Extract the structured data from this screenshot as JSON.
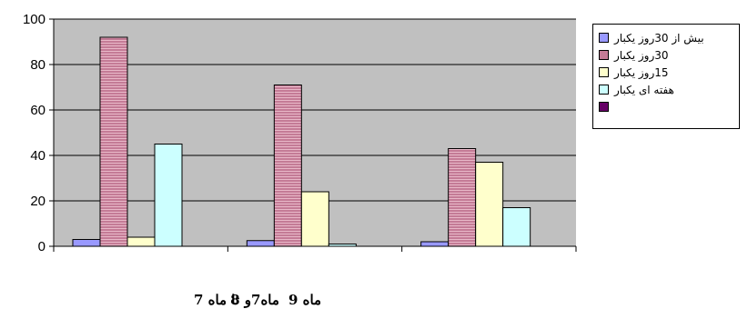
{
  "chart_data": {
    "type": "bar",
    "title": "",
    "xlabel": "",
    "ylabel": "",
    "ylim": [
      0,
      100
    ],
    "yticks": [
      "0",
      "20",
      "40",
      "60",
      "80",
      "100"
    ],
    "grid": true,
    "legend_position": "right",
    "categories": [
      "تا ماه 7",
      "ماه7و 8",
      "ماه 9"
    ],
    "series": [
      {
        "name": "بیش از 30روز یکبار",
        "color": "#9999ff",
        "values": [
          3,
          2.5,
          2
        ]
      },
      {
        "name": "30روز یکبار",
        "color": "#c47b96",
        "values": [
          92,
          71,
          43
        ]
      },
      {
        "name": "15روز یکبار",
        "color": "#ffffcc",
        "values": [
          4,
          24,
          37
        ]
      },
      {
        "name": "هفته ای یکبار",
        "color": "#ccffff",
        "values": [
          45,
          1,
          17
        ]
      },
      {
        "name": "",
        "color": "#660066",
        "values": [
          0,
          0,
          0
        ]
      }
    ],
    "plot_background": "#c0c0c0"
  }
}
